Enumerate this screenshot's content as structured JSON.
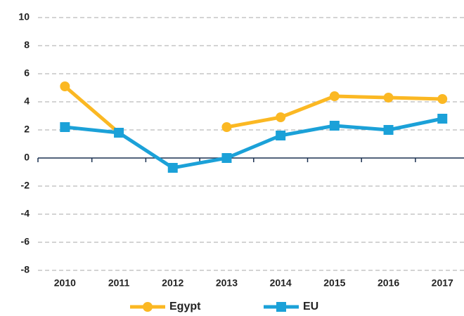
{
  "chart_data": {
    "type": "line",
    "categories": [
      "2010",
      "2011",
      "2012",
      "2013",
      "2014",
      "2015",
      "2016",
      "2017"
    ],
    "series": [
      {
        "name": "Egypt",
        "color": "#fbb823",
        "marker": "circle",
        "values": [
          5.1,
          1.8,
          null,
          2.2,
          2.9,
          4.4,
          4.3,
          4.2
        ]
      },
      {
        "name": "EU",
        "color": "#1ba1d8",
        "marker": "square",
        "values": [
          2.2,
          1.8,
          -0.7,
          0.0,
          1.6,
          2.3,
          2.0,
          2.8
        ]
      }
    ],
    "ylim": [
      -8,
      10
    ],
    "yticks": [
      -8,
      -6,
      -4,
      -2,
      0,
      2,
      4,
      6,
      8,
      10
    ],
    "grid": true,
    "legend": "bottom"
  }
}
